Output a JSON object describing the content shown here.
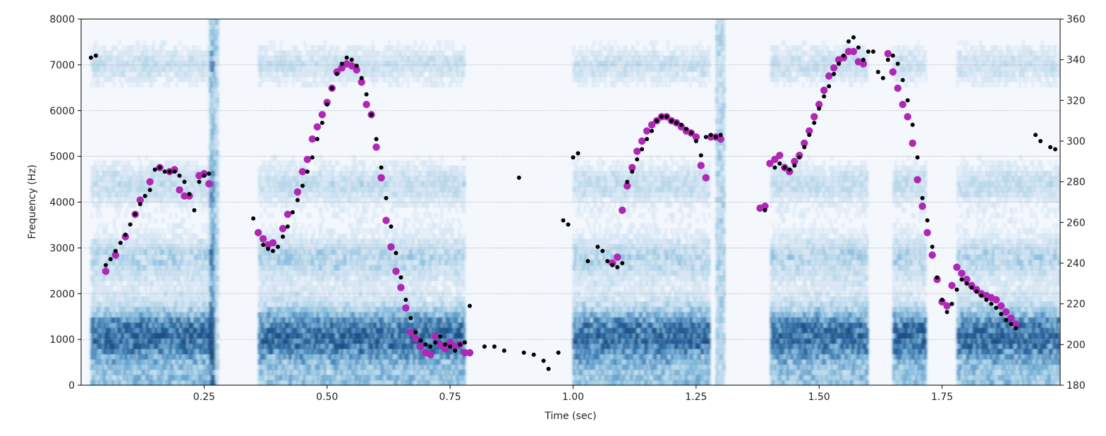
{
  "chart_data": {
    "type": "scatter",
    "subtype": "spectrogram-with-pitch-overlay",
    "xlabel": "Time (sec)",
    "ylabel": "Frequency (Hz)",
    "xlim": [
      0.0,
      1.99
    ],
    "ylim": [
      0,
      8000
    ],
    "y2lim": [
      180,
      360
    ],
    "grid": "horizontal-dotted",
    "colormap": "Blues",
    "x_ticks": [
      0.25,
      0.5,
      0.75,
      1.0,
      1.25,
      1.5,
      1.75
    ],
    "x_tick_labels": [
      "0.25",
      "0.50",
      "0.75",
      "1.00",
      "1.25",
      "1.50",
      "1.75"
    ],
    "y_ticks": [
      0,
      1000,
      2000,
      3000,
      4000,
      5000,
      6000,
      7000,
      8000
    ],
    "y_tick_labels": [
      "0",
      "1000",
      "2000",
      "3000",
      "4000",
      "5000",
      "6000",
      "7000",
      "8000"
    ],
    "y2_ticks": [
      180,
      200,
      220,
      240,
      260,
      280,
      300,
      320,
      340,
      360
    ],
    "y2_tick_labels": [
      "180",
      "200",
      "220",
      "240",
      "260",
      "280",
      "300",
      "320",
      "340",
      "360"
    ],
    "spectrogram": {
      "voiced_regions": [
        [
          0.02,
          0.27
        ],
        [
          0.36,
          0.78
        ],
        [
          1.0,
          1.28
        ],
        [
          1.4,
          1.6
        ],
        [
          1.65,
          1.72
        ],
        [
          1.78,
          1.99
        ]
      ],
      "bursts": [
        0.27,
        1.3
      ],
      "formant_bands_hz": [
        900,
        1300,
        2800,
        4400,
        7000
      ]
    },
    "series": [
      {
        "color": "#000000",
        "axis": "y2",
        "marker_size": "small",
        "points": [
          [
            0.02,
            341
          ],
          [
            0.03,
            342
          ],
          [
            0.05,
            239
          ],
          [
            0.06,
            242
          ],
          [
            0.07,
            246
          ],
          [
            0.08,
            250
          ],
          [
            0.09,
            254
          ],
          [
            0.1,
            259
          ],
          [
            0.11,
            264
          ],
          [
            0.12,
            269
          ],
          [
            0.13,
            273
          ],
          [
            0.14,
            276
          ],
          [
            0.15,
            286
          ],
          [
            0.16,
            287
          ],
          [
            0.17,
            285
          ],
          [
            0.18,
            285
          ],
          [
            0.19,
            285
          ],
          [
            0.2,
            283
          ],
          [
            0.21,
            280
          ],
          [
            0.22,
            274
          ],
          [
            0.23,
            266
          ],
          [
            0.24,
            280
          ],
          [
            0.25,
            283
          ],
          [
            0.26,
            284
          ],
          [
            0.35,
            262
          ],
          [
            0.37,
            249
          ],
          [
            0.38,
            247
          ],
          [
            0.39,
            246
          ],
          [
            0.4,
            248
          ],
          [
            0.41,
            253
          ],
          [
            0.42,
            258
          ],
          [
            0.43,
            265
          ],
          [
            0.44,
            271
          ],
          [
            0.45,
            278
          ],
          [
            0.46,
            285
          ],
          [
            0.47,
            292
          ],
          [
            0.48,
            301
          ],
          [
            0.49,
            309
          ],
          [
            0.5,
            318
          ],
          [
            0.51,
            326
          ],
          [
            0.52,
            333
          ],
          [
            0.53,
            338
          ],
          [
            0.54,
            341
          ],
          [
            0.55,
            340
          ],
          [
            0.56,
            337
          ],
          [
            0.57,
            331
          ],
          [
            0.58,
            323
          ],
          [
            0.59,
            313
          ],
          [
            0.6,
            301
          ],
          [
            0.61,
            287
          ],
          [
            0.62,
            272
          ],
          [
            0.63,
            258
          ],
          [
            0.64,
            245
          ],
          [
            0.65,
            233
          ],
          [
            0.66,
            222
          ],
          [
            0.67,
            213
          ],
          [
            0.68,
            206
          ],
          [
            0.69,
            202
          ],
          [
            0.7,
            200
          ],
          [
            0.71,
            199
          ],
          [
            0.72,
            201
          ],
          [
            0.73,
            204
          ],
          [
            0.74,
            200
          ],
          [
            0.75,
            199
          ],
          [
            0.76,
            197
          ],
          [
            0.77,
            200
          ],
          [
            0.78,
            201
          ],
          [
            0.79,
            219
          ],
          [
            0.82,
            199
          ],
          [
            0.84,
            199
          ],
          [
            0.86,
            197
          ],
          [
            0.89,
            282
          ],
          [
            0.9,
            196
          ],
          [
            0.92,
            195
          ],
          [
            0.94,
            192
          ],
          [
            0.95,
            188
          ],
          [
            0.97,
            196
          ],
          [
            0.98,
            261
          ],
          [
            0.99,
            259
          ],
          [
            1.0,
            292
          ],
          [
            1.01,
            294
          ],
          [
            1.03,
            241
          ],
          [
            1.05,
            248
          ],
          [
            1.06,
            246
          ],
          [
            1.07,
            241
          ],
          [
            1.08,
            239
          ],
          [
            1.09,
            238
          ],
          [
            1.1,
            240
          ],
          [
            1.11,
            280
          ],
          [
            1.12,
            285
          ],
          [
            1.13,
            291
          ],
          [
            1.14,
            296
          ],
          [
            1.15,
            301
          ],
          [
            1.16,
            305
          ],
          [
            1.17,
            310
          ],
          [
            1.18,
            312
          ],
          [
            1.19,
            312
          ],
          [
            1.2,
            310
          ],
          [
            1.21,
            309
          ],
          [
            1.22,
            308
          ],
          [
            1.23,
            306
          ],
          [
            1.24,
            304
          ],
          [
            1.25,
            300
          ],
          [
            1.26,
            293
          ],
          [
            1.27,
            302
          ],
          [
            1.28,
            303
          ],
          [
            1.29,
            302
          ],
          [
            1.3,
            303
          ],
          [
            1.39,
            266
          ],
          [
            1.41,
            287
          ],
          [
            1.42,
            289
          ],
          [
            1.43,
            287
          ],
          [
            1.44,
            286
          ],
          [
            1.45,
            288
          ],
          [
            1.46,
            292
          ],
          [
            1.47,
            297
          ],
          [
            1.48,
            303
          ],
          [
            1.49,
            309
          ],
          [
            1.5,
            316
          ],
          [
            1.51,
            322
          ],
          [
            1.52,
            327
          ],
          [
            1.53,
            333
          ],
          [
            1.54,
            338
          ],
          [
            1.55,
            342
          ],
          [
            1.56,
            349
          ],
          [
            1.57,
            351
          ],
          [
            1.58,
            346
          ],
          [
            1.59,
            340
          ],
          [
            1.6,
            344
          ],
          [
            1.61,
            344
          ],
          [
            1.62,
            334
          ],
          [
            1.63,
            331
          ],
          [
            1.64,
            340
          ],
          [
            1.65,
            342
          ],
          [
            1.66,
            338
          ],
          [
            1.67,
            330
          ],
          [
            1.68,
            320
          ],
          [
            1.69,
            308
          ],
          [
            1.7,
            292
          ],
          [
            1.71,
            272
          ],
          [
            1.72,
            261
          ],
          [
            1.73,
            248
          ],
          [
            1.74,
            233
          ],
          [
            1.75,
            222
          ],
          [
            1.76,
            216
          ],
          [
            1.77,
            220
          ],
          [
            1.78,
            227
          ],
          [
            1.79,
            232
          ],
          [
            1.8,
            230
          ],
          [
            1.81,
            228
          ],
          [
            1.82,
            226
          ],
          [
            1.83,
            224
          ],
          [
            1.84,
            222
          ],
          [
            1.85,
            220
          ],
          [
            1.86,
            218
          ],
          [
            1.87,
            215
          ],
          [
            1.88,
            212
          ],
          [
            1.89,
            210
          ],
          [
            1.9,
            208
          ],
          [
            1.94,
            303
          ],
          [
            1.95,
            300
          ],
          [
            1.97,
            297
          ],
          [
            1.98,
            296
          ]
        ]
      },
      {
        "color": "#b026b6",
        "axis": "y2",
        "marker_size": "large",
        "points": [
          [
            0.05,
            236
          ],
          [
            0.07,
            244
          ],
          [
            0.09,
            253
          ],
          [
            0.11,
            264
          ],
          [
            0.12,
            271
          ],
          [
            0.14,
            280
          ],
          [
            0.16,
            287
          ],
          [
            0.18,
            285
          ],
          [
            0.19,
            286
          ],
          [
            0.2,
            276
          ],
          [
            0.21,
            273
          ],
          [
            0.22,
            273
          ],
          [
            0.24,
            283
          ],
          [
            0.25,
            284
          ],
          [
            0.26,
            279
          ],
          [
            0.36,
            255
          ],
          [
            0.37,
            252
          ],
          [
            0.38,
            249
          ],
          [
            0.39,
            250
          ],
          [
            0.41,
            257
          ],
          [
            0.42,
            264
          ],
          [
            0.44,
            275
          ],
          [
            0.45,
            285
          ],
          [
            0.46,
            291
          ],
          [
            0.47,
            301
          ],
          [
            0.48,
            307
          ],
          [
            0.49,
            313
          ],
          [
            0.5,
            319
          ],
          [
            0.51,
            326
          ],
          [
            0.52,
            334
          ],
          [
            0.53,
            336
          ],
          [
            0.54,
            338
          ],
          [
            0.55,
            337
          ],
          [
            0.56,
            335
          ],
          [
            0.57,
            329
          ],
          [
            0.58,
            318
          ],
          [
            0.59,
            313
          ],
          [
            0.6,
            297
          ],
          [
            0.61,
            282
          ],
          [
            0.62,
            261
          ],
          [
            0.63,
            248
          ],
          [
            0.64,
            236
          ],
          [
            0.65,
            228
          ],
          [
            0.66,
            218
          ],
          [
            0.67,
            206
          ],
          [
            0.68,
            203
          ],
          [
            0.69,
            199
          ],
          [
            0.7,
            196
          ],
          [
            0.71,
            195
          ],
          [
            0.72,
            204
          ],
          [
            0.73,
            200
          ],
          [
            0.74,
            198
          ],
          [
            0.75,
            201
          ],
          [
            0.76,
            199
          ],
          [
            0.77,
            200
          ],
          [
            0.78,
            196
          ],
          [
            0.79,
            196
          ],
          [
            1.08,
            240
          ],
          [
            1.09,
            243
          ],
          [
            1.1,
            266
          ],
          [
            1.11,
            278
          ],
          [
            1.12,
            287
          ],
          [
            1.13,
            295
          ],
          [
            1.14,
            300
          ],
          [
            1.15,
            305
          ],
          [
            1.16,
            308
          ],
          [
            1.17,
            310
          ],
          [
            1.18,
            312
          ],
          [
            1.19,
            312
          ],
          [
            1.2,
            310
          ],
          [
            1.21,
            309
          ],
          [
            1.22,
            307
          ],
          [
            1.23,
            305
          ],
          [
            1.24,
            304
          ],
          [
            1.25,
            302
          ],
          [
            1.26,
            288
          ],
          [
            1.27,
            282
          ],
          [
            1.28,
            302
          ],
          [
            1.29,
            302
          ],
          [
            1.3,
            301
          ],
          [
            1.38,
            267
          ],
          [
            1.39,
            268
          ],
          [
            1.4,
            289
          ],
          [
            1.41,
            291
          ],
          [
            1.42,
            293
          ],
          [
            1.43,
            287
          ],
          [
            1.44,
            285
          ],
          [
            1.45,
            290
          ],
          [
            1.46,
            293
          ],
          [
            1.47,
            299
          ],
          [
            1.48,
            305
          ],
          [
            1.49,
            312
          ],
          [
            1.5,
            318
          ],
          [
            1.51,
            325
          ],
          [
            1.52,
            332
          ],
          [
            1.53,
            336
          ],
          [
            1.54,
            340
          ],
          [
            1.55,
            341
          ],
          [
            1.56,
            344
          ],
          [
            1.57,
            344
          ],
          [
            1.58,
            339
          ],
          [
            1.59,
            338
          ],
          [
            1.64,
            343
          ],
          [
            1.65,
            334
          ],
          [
            1.66,
            326
          ],
          [
            1.67,
            318
          ],
          [
            1.68,
            312
          ],
          [
            1.69,
            299
          ],
          [
            1.7,
            281
          ],
          [
            1.71,
            268
          ],
          [
            1.72,
            255
          ],
          [
            1.73,
            244
          ],
          [
            1.74,
            232
          ],
          [
            1.75,
            221
          ],
          [
            1.76,
            219
          ],
          [
            1.77,
            229
          ],
          [
            1.78,
            238
          ],
          [
            1.79,
            235
          ],
          [
            1.8,
            232
          ],
          [
            1.81,
            229
          ],
          [
            1.82,
            227
          ],
          [
            1.83,
            225
          ],
          [
            1.84,
            224
          ],
          [
            1.85,
            223
          ],
          [
            1.86,
            222
          ],
          [
            1.87,
            219
          ],
          [
            1.88,
            216
          ],
          [
            1.89,
            213
          ],
          [
            1.9,
            210
          ]
        ]
      }
    ]
  }
}
